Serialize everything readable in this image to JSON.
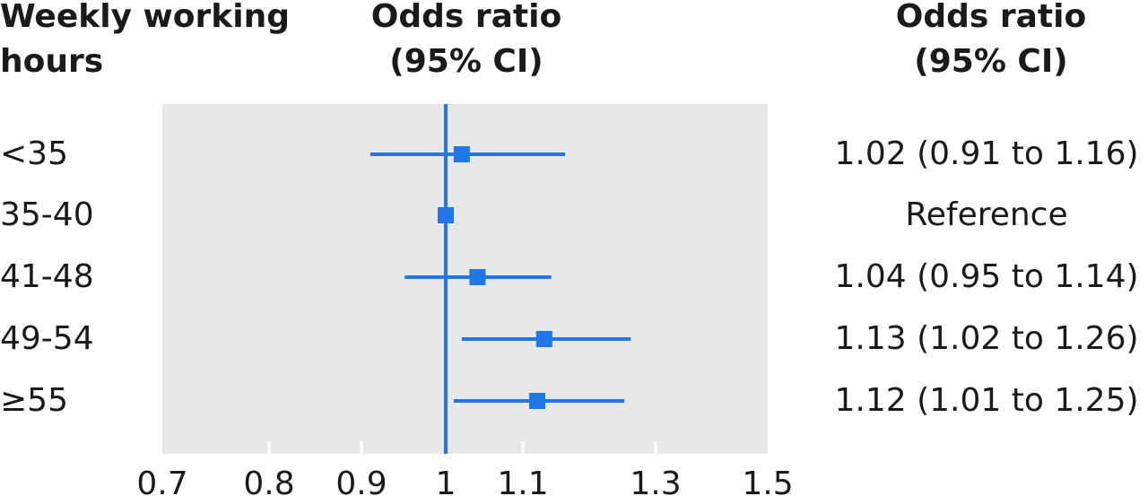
{
  "headers": {
    "label_line1": "Weekly working",
    "label_line2": "hours",
    "plot_line1": "Odds ratio",
    "plot_line2": "(95% CI)",
    "est_line1": "Odds ratio",
    "est_line2": "(95% CI)"
  },
  "colors": {
    "marker": "#1f77e8",
    "panel": "#e8e8e8",
    "axis_tick": "#ffffff"
  },
  "chart_data": {
    "type": "forest",
    "xlim": [
      0.7,
      1.5
    ],
    "reference_line": 1,
    "ticks": [
      0.7,
      0.8,
      0.9,
      1,
      1.1,
      1.3,
      1.5
    ],
    "tick_labels": [
      "0.7",
      "0.8",
      "0.9",
      "1",
      "1.1",
      "1.3",
      "1.5"
    ],
    "rows": [
      {
        "label": "<35",
        "or": 1.02,
        "lower": 0.91,
        "upper": 1.16,
        "text": "1.02 (0.91 to 1.16)"
      },
      {
        "label": "35-40",
        "or": 1.0,
        "lower": null,
        "upper": null,
        "text": "Reference"
      },
      {
        "label": "41-48",
        "or": 1.04,
        "lower": 0.95,
        "upper": 1.14,
        "text": "1.04 (0.95 to 1.14)"
      },
      {
        "label": "49-54",
        "or": 1.13,
        "lower": 1.02,
        "upper": 1.26,
        "text": "1.13 (1.02 to 1.26)"
      },
      {
        "label": "≥55",
        "or": 1.12,
        "lower": 1.01,
        "upper": 1.25,
        "text": "1.12 (1.01 to 1.25)"
      }
    ]
  }
}
